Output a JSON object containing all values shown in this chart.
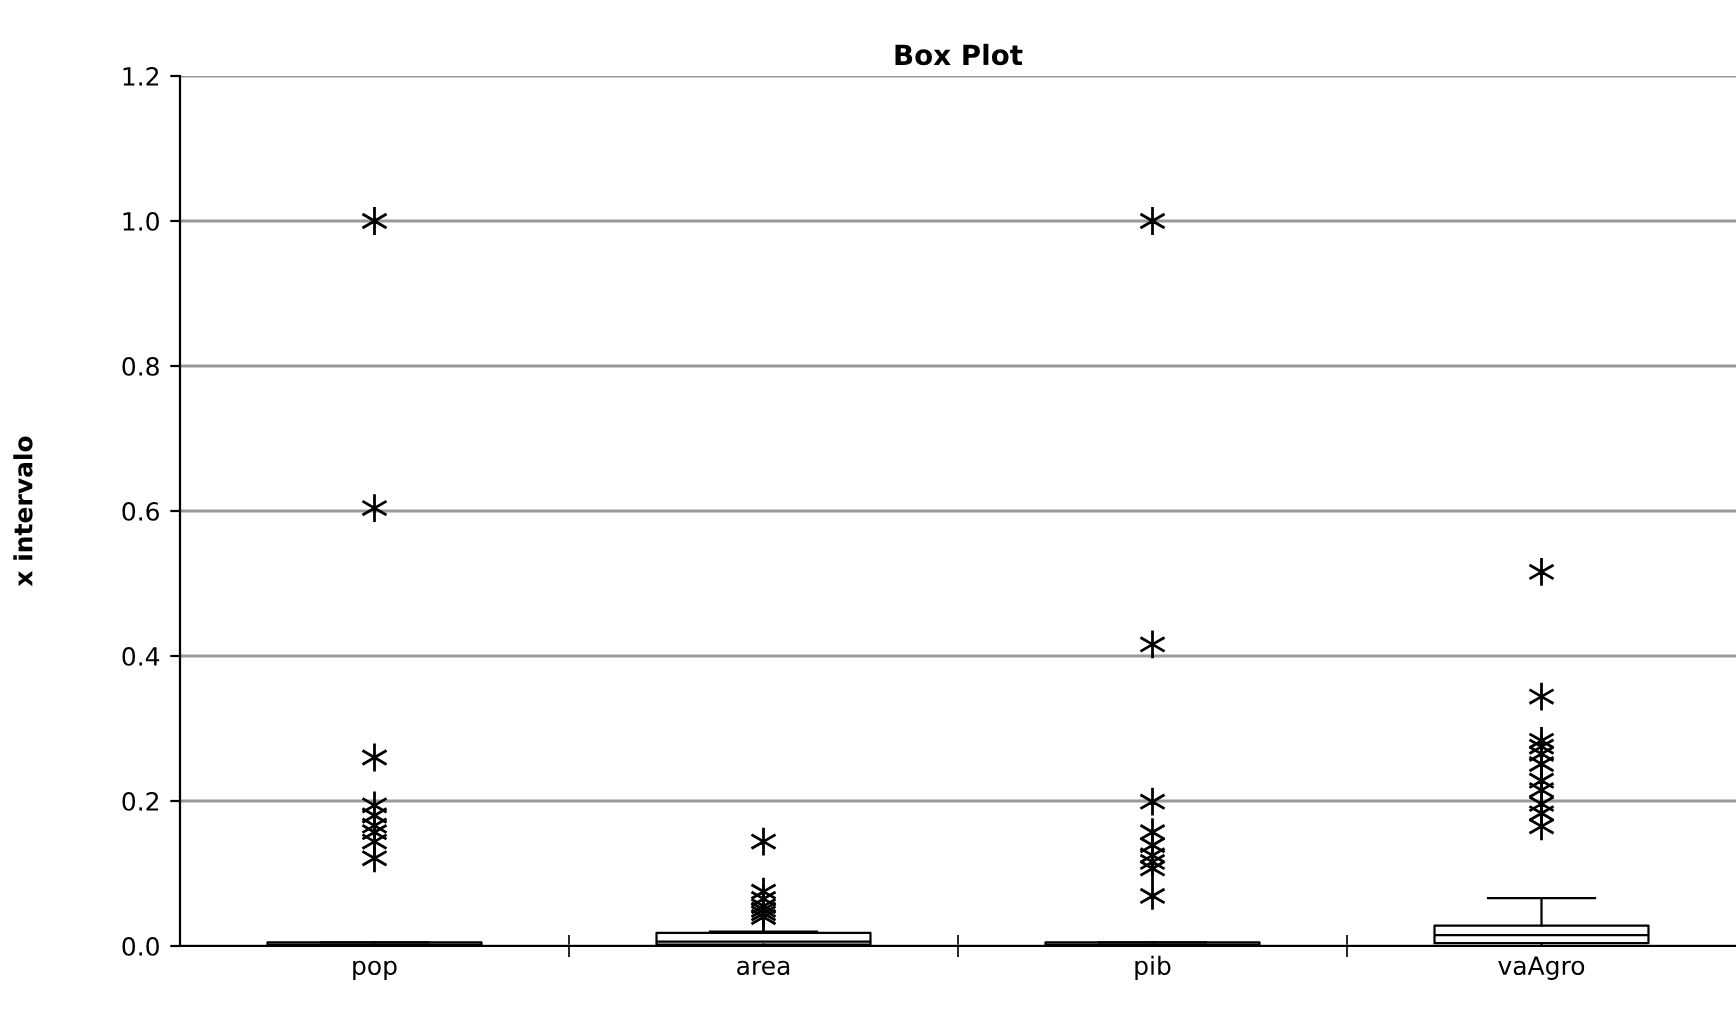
{
  "chart_data": {
    "type": "box",
    "title": "Box Plot",
    "ylabel": "x intervalo",
    "categories": [
      "pop",
      "area",
      "pib",
      "vaAgro"
    ],
    "boxes": [
      {
        "low": 0,
        "q1": 0,
        "median": 0.002,
        "q3": 0.005,
        "high": 0.005,
        "outliers": [
          1.0,
          0.604,
          0.26,
          0.194,
          0.18,
          0.166,
          0.157,
          0.144,
          0.121
        ]
      },
      {
        "low": 0,
        "q1": 0.002,
        "median": 0.006,
        "q3": 0.018,
        "high": 0.02,
        "outliers": [
          0.144,
          0.075,
          0.065,
          0.055,
          0.05,
          0.045,
          0.04
        ]
      },
      {
        "low": 0,
        "q1": 0,
        "median": 0.002,
        "q3": 0.005,
        "high": 0.005,
        "outliers": [
          1.0,
          0.416,
          0.199,
          0.157,
          0.139,
          0.125,
          0.116,
          0.107,
          0.069
        ]
      },
      {
        "low": 0,
        "q1": 0.004,
        "median": 0.015,
        "q3": 0.028,
        "high": 0.066,
        "outliers": [
          0.516,
          0.344,
          0.283,
          0.275,
          0.265,
          0.251,
          0.228,
          0.215,
          0.196,
          0.183,
          0.165
        ]
      }
    ],
    "color": "#000000",
    "marker": "star",
    "ylim": [
      0,
      1.2
    ],
    "yticks": [
      {
        "value": 0,
        "label": "0.0"
      },
      {
        "value": 0.2,
        "label": "0.2"
      },
      {
        "value": 0.4,
        "label": "0.4"
      },
      {
        "value": 0.6,
        "label": "0.6"
      },
      {
        "value": 0.8,
        "label": "0.8"
      },
      {
        "value": 1.0,
        "label": "1.0"
      },
      {
        "value": 1.2,
        "label": "1.2"
      }
    ],
    "grid": "y",
    "legend": false
  }
}
